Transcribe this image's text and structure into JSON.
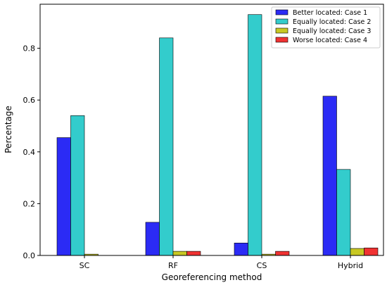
{
  "chart_data": {
    "type": "bar",
    "title": "",
    "xlabel": "Georeferencing method",
    "ylabel": "Percentage",
    "categories": [
      "SC",
      "RF",
      "CS",
      "Hybrid"
    ],
    "ylim": [
      0,
      0.97
    ],
    "yticks": [
      0.0,
      0.2,
      0.4,
      0.6,
      0.8
    ],
    "ytick_labels": [
      "0.0",
      "0.2",
      "0.4",
      "0.6",
      "0.8"
    ],
    "grid": false,
    "legend_position": "top-right",
    "series": [
      {
        "name": "Better located: Case 1",
        "color": "#2b2bf5",
        "values": [
          0.455,
          0.128,
          0.048,
          0.615
        ]
      },
      {
        "name": "Equally located: Case 2",
        "color": "#33cccc",
        "values": [
          0.54,
          0.84,
          0.93,
          0.332
        ]
      },
      {
        "name": "Equally located: Case 3",
        "color": "#c8c823",
        "values": [
          0.005,
          0.016,
          0.005,
          0.027
        ]
      },
      {
        "name": "Worse located: Case 4",
        "color": "#f03232",
        "values": [
          0.0,
          0.016,
          0.016,
          0.029
        ]
      }
    ]
  }
}
